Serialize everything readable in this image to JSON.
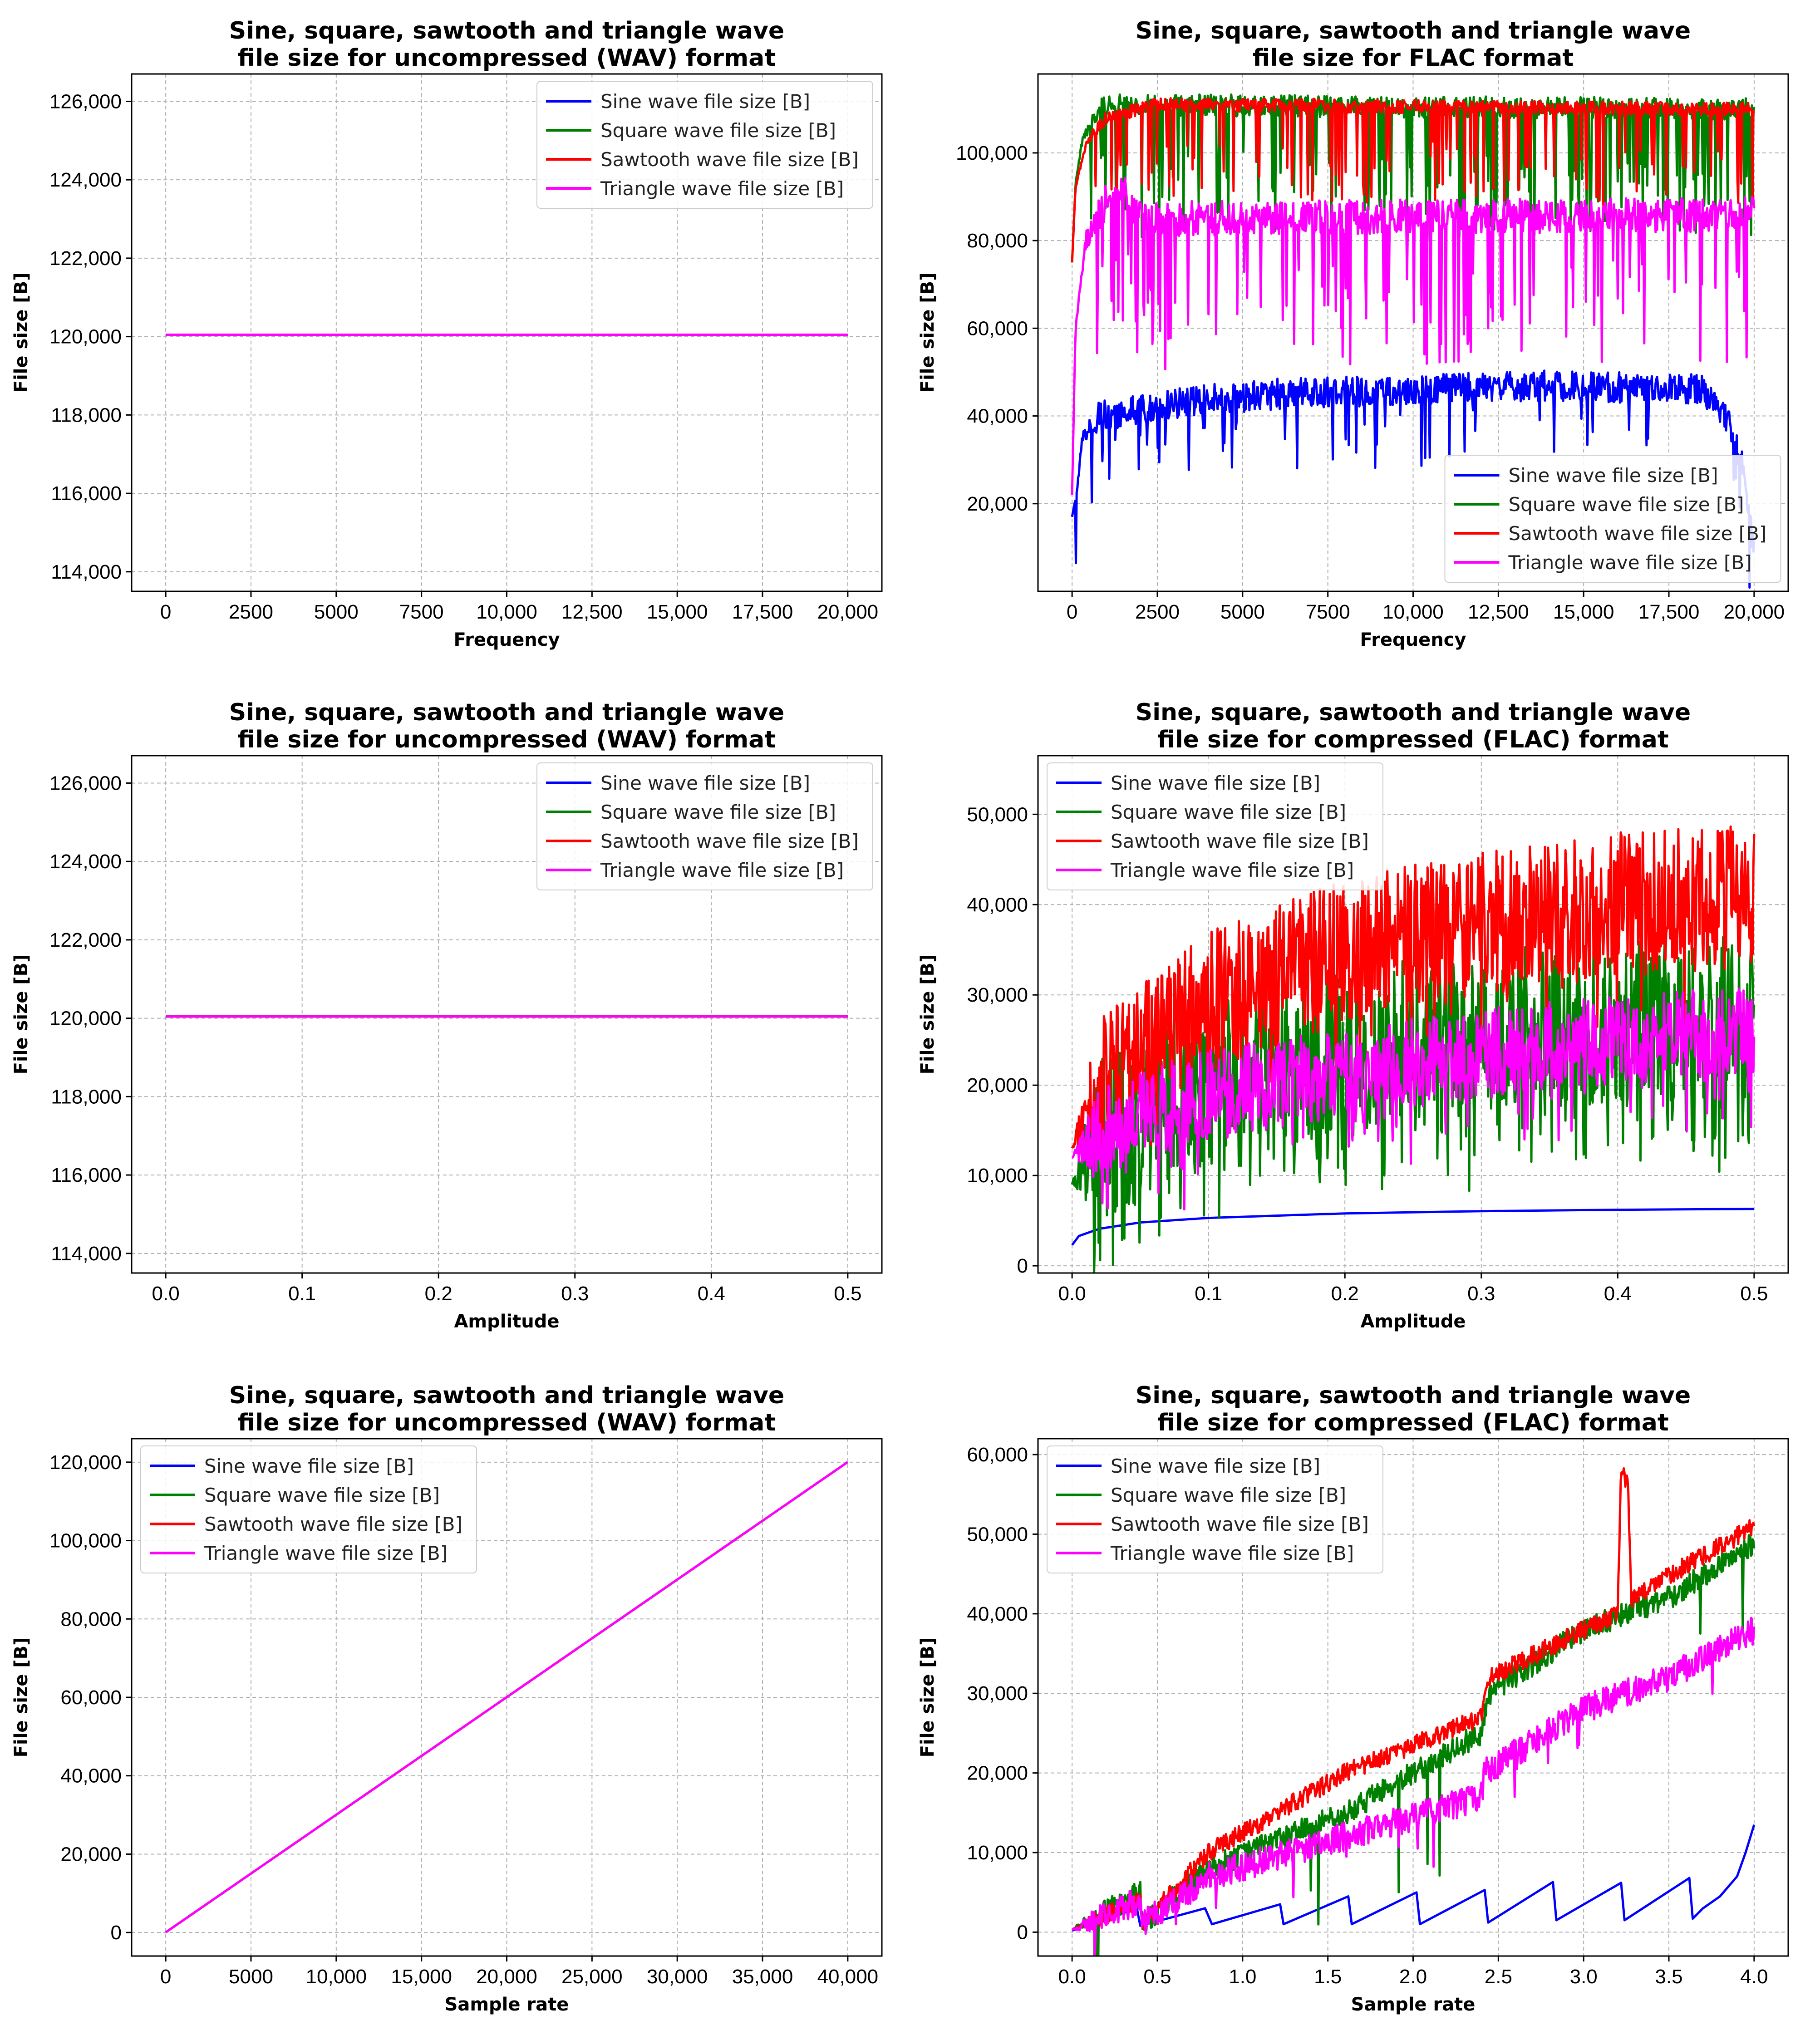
{
  "chart_data": [
    {
      "type": "line",
      "title": "Sine, square, sawtooth and triangle wave\nfile size for uncompressed (WAV) format",
      "xlabel": "Frequency",
      "ylabel": "File size [B]",
      "xlim": [
        -1000,
        21000
      ],
      "ylim": [
        113500,
        126700
      ],
      "xticks": [
        0,
        2500,
        5000,
        7500,
        10000,
        12500,
        15000,
        17500,
        20000
      ],
      "xtick_labels": [
        "0",
        "2500",
        "5000",
        "7500",
        "10,000",
        "12,500",
        "15,000",
        "17,500",
        "20,000"
      ],
      "yticks": [
        114000,
        116000,
        118000,
        120000,
        122000,
        124000,
        126000
      ],
      "ytick_labels": [
        "114,000",
        "116,000",
        "118,000",
        "120,000",
        "122,000",
        "124,000",
        "126,000"
      ],
      "grid": true,
      "legend_position": "top-right",
      "series": [
        {
          "name": "Sine wave file size [B]",
          "color": "#0000ff",
          "gen": "const",
          "x0": 0,
          "x1": 20000,
          "value": 120044
        },
        {
          "name": "Square wave file size [B]",
          "color": "#008000",
          "gen": "const",
          "x0": 0,
          "x1": 20000,
          "value": 120044
        },
        {
          "name": "Sawtooth wave file size [B]",
          "color": "#ff0000",
          "gen": "const",
          "x0": 0,
          "x1": 20000,
          "value": 120044
        },
        {
          "name": "Triangle wave file size [B]",
          "color": "#ff00ff",
          "gen": "const",
          "x0": 0,
          "x1": 20000,
          "value": 120044
        }
      ]
    },
    {
      "type": "line",
      "title": "Sine, square, sawtooth and triangle wave\nfile size for FLAC format",
      "xlabel": "Frequency",
      "ylabel": "File size [B]",
      "xlim": [
        -1000,
        21000
      ],
      "ylim": [
        0,
        118000
      ],
      "xticks": [
        0,
        2500,
        5000,
        7500,
        10000,
        12500,
        15000,
        17500,
        20000
      ],
      "xtick_labels": [
        "0",
        "2500",
        "5000",
        "7500",
        "10,000",
        "12,500",
        "15,000",
        "17,500",
        "20,000"
      ],
      "yticks": [
        20000,
        40000,
        60000,
        80000,
        100000
      ],
      "ytick_labels": [
        "20,000",
        "40,000",
        "60,000",
        "80,000",
        "100,000"
      ],
      "grid": true,
      "legend_position": "lower-center",
      "series": [
        {
          "name": "Sine wave file size [B]",
          "color": "#0000ff",
          "gen": "noisy",
          "points": [
            [
              0,
              17000
            ],
            [
              150,
              23000
            ],
            [
              300,
              35000
            ],
            [
              800,
              40000
            ],
            [
              3000,
              43000
            ],
            [
              6000,
              45000
            ],
            [
              10000,
              46000
            ],
            [
              14000,
              47000
            ],
            [
              18500,
              46000
            ],
            [
              19200,
              40000
            ],
            [
              19700,
              28000
            ],
            [
              20000,
              8000
            ]
          ],
          "amp": 3500,
          "dips": 0.05,
          "dipDepth": 16000
        },
        {
          "name": "Square wave file size [B]",
          "color": "#008000",
          "gen": "noisy",
          "points": [
            [
              0,
              75000
            ],
            [
              100,
              93000
            ],
            [
              300,
              103000
            ],
            [
              800,
              110000
            ],
            [
              1500,
              111000
            ],
            [
              20000,
              110000
            ]
          ],
          "amp": 2500,
          "dips": 0.14,
          "dipDepth": 30000
        },
        {
          "name": "Sawtooth wave file size [B]",
          "color": "#ff0000",
          "gen": "noisy",
          "points": [
            [
              0,
              75000
            ],
            [
              100,
              92000
            ],
            [
              400,
              102000
            ],
            [
              1000,
              108000
            ],
            [
              2500,
              111000
            ],
            [
              20000,
              110000
            ]
          ],
          "amp": 1500,
          "dips": 0.1,
          "dipDepth": 22000
        },
        {
          "name": "Triangle wave file size [B]",
          "color": "#ff00ff",
          "gen": "noisy",
          "points": [
            [
              0,
              22000
            ],
            [
              100,
              60000
            ],
            [
              400,
              80000
            ],
            [
              1200,
              92000
            ],
            [
              1600,
              90000
            ],
            [
              2000,
              85000
            ],
            [
              20000,
              86000
            ]
          ],
          "amp": 4000,
          "dips": 0.12,
          "dipDepth": 32000
        }
      ]
    },
    {
      "type": "line",
      "title": "Sine, square, sawtooth and triangle wave\nfile size for uncompressed (WAV) format",
      "xlabel": "Amplitude",
      "ylabel": "File size [B]",
      "xlim": [
        -0.025,
        0.525
      ],
      "ylim": [
        113500,
        126700
      ],
      "xticks": [
        0,
        0.1,
        0.2,
        0.3,
        0.4,
        0.5
      ],
      "xtick_labels": [
        "0.0",
        "0.1",
        "0.2",
        "0.3",
        "0.4",
        "0.5"
      ],
      "yticks": [
        114000,
        116000,
        118000,
        120000,
        122000,
        124000,
        126000
      ],
      "ytick_labels": [
        "114,000",
        "116,000",
        "118,000",
        "120,000",
        "122,000",
        "124,000",
        "126,000"
      ],
      "grid": true,
      "legend_position": "top-right",
      "series": [
        {
          "name": "Sine wave file size [B]",
          "color": "#0000ff",
          "gen": "const",
          "x0": 0,
          "x1": 0.5,
          "value": 120044
        },
        {
          "name": "Square wave file size [B]",
          "color": "#008000",
          "gen": "const",
          "x0": 0,
          "x1": 0.5,
          "value": 120044
        },
        {
          "name": "Sawtooth wave file size [B]",
          "color": "#ff0000",
          "gen": "const",
          "x0": 0,
          "x1": 0.5,
          "value": 120044
        },
        {
          "name": "Triangle wave file size [B]",
          "color": "#ff00ff",
          "gen": "const",
          "x0": 0,
          "x1": 0.5,
          "value": 120044
        }
      ]
    },
    {
      "type": "line",
      "title": "Sine, square, sawtooth and triangle wave\nfile size for compressed (FLAC) format",
      "xlabel": "Amplitude",
      "ylabel": "File size [B]",
      "xlim": [
        -0.025,
        0.525
      ],
      "ylim": [
        -800,
        56500
      ],
      "xticks": [
        0,
        0.1,
        0.2,
        0.3,
        0.4,
        0.5
      ],
      "xtick_labels": [
        "0.0",
        "0.1",
        "0.2",
        "0.3",
        "0.4",
        "0.5"
      ],
      "yticks": [
        0,
        10000,
        20000,
        30000,
        40000,
        50000
      ],
      "ytick_labels": [
        "0",
        "10,000",
        "20,000",
        "30,000",
        "40,000",
        "50,000"
      ],
      "grid": true,
      "legend_position": "top-left",
      "series": [
        {
          "name": "Sine wave file size [B]",
          "color": "#0000ff",
          "gen": "curve",
          "points": [
            [
              0,
              2300
            ],
            [
              0.005,
              3300
            ],
            [
              0.02,
              4100
            ],
            [
              0.05,
              4800
            ],
            [
              0.1,
              5300
            ],
            [
              0.2,
              5800
            ],
            [
              0.3,
              6050
            ],
            [
              0.4,
              6200
            ],
            [
              0.5,
              6300
            ]
          ]
        },
        {
          "name": "Square wave file size [B]",
          "color": "#008000",
          "gen": "noisy",
          "points": [
            [
              0,
              9000
            ],
            [
              0.02,
              14000
            ],
            [
              0.1,
              20000
            ],
            [
              0.2,
              24000
            ],
            [
              0.3,
              26000
            ],
            [
              0.4,
              27000
            ],
            [
              0.5,
              27500
            ]
          ],
          "amp": 9000,
          "dips": 0.25,
          "dipDepth": 9000
        },
        {
          "name": "Sawtooth wave file size [B]",
          "color": "#ff0000",
          "gen": "noisy",
          "points": [
            [
              0,
              13000
            ],
            [
              0.02,
              20000
            ],
            [
              0.1,
              29000
            ],
            [
              0.2,
              35000
            ],
            [
              0.3,
              38000
            ],
            [
              0.4,
              40000
            ],
            [
              0.5,
              41000
            ]
          ],
          "amp": 8000,
          "dips": 0.06,
          "dipDepth": 10000
        },
        {
          "name": "Triangle wave file size [B]",
          "color": "#ff00ff",
          "gen": "noisy",
          "points": [
            [
              0,
              12000
            ],
            [
              0.02,
              15000
            ],
            [
              0.1,
              19000
            ],
            [
              0.2,
              21500
            ],
            [
              0.3,
              23500
            ],
            [
              0.4,
              25000
            ],
            [
              0.5,
              26000
            ]
          ],
          "amp": 5000,
          "dips": 0.12,
          "dipDepth": 7000
        }
      ]
    },
    {
      "type": "line",
      "title": "Sine, square, sawtooth and triangle wave\nfile size for uncompressed (WAV) format",
      "xlabel": "Sample rate",
      "ylabel": "File size [B]",
      "xlim": [
        -2000,
        42000
      ],
      "ylim": [
        -6000,
        126000
      ],
      "xticks": [
        0,
        5000,
        10000,
        15000,
        20000,
        25000,
        30000,
        35000,
        40000
      ],
      "xtick_labels": [
        "0",
        "5000",
        "10,000",
        "15,000",
        "20,000",
        "25,000",
        "30,000",
        "35,000",
        "40,000"
      ],
      "yticks": [
        0,
        20000,
        40000,
        60000,
        80000,
        100000,
        120000
      ],
      "ytick_labels": [
        "0",
        "20,000",
        "40,000",
        "60,000",
        "80,000",
        "100,000",
        "120,000"
      ],
      "grid": true,
      "legend_position": "top-left",
      "series": [
        {
          "name": "Sine wave file size [B]",
          "color": "#0000ff",
          "gen": "curve",
          "points": [
            [
              0,
              44
            ],
            [
              40000,
              120044
            ]
          ]
        },
        {
          "name": "Square wave file size [B]",
          "color": "#008000",
          "gen": "curve",
          "points": [
            [
              0,
              44
            ],
            [
              40000,
              120044
            ]
          ]
        },
        {
          "name": "Sawtooth wave file size [B]",
          "color": "#ff0000",
          "gen": "curve",
          "points": [
            [
              0,
              44
            ],
            [
              40000,
              120044
            ]
          ]
        },
        {
          "name": "Triangle wave file size [B]",
          "color": "#ff00ff",
          "gen": "curve",
          "points": [
            [
              0,
              44
            ],
            [
              40000,
              120044
            ]
          ]
        }
      ]
    },
    {
      "type": "line",
      "title": "Sine, square, sawtooth and triangle wave\nfile size for compressed (FLAC) format",
      "xlabel": "Sample rate",
      "ylabel": "File size [B]",
      "xlim": [
        -0.2,
        4.2
      ],
      "ylim": [
        -3000,
        62000
      ],
      "xticks": [
        0,
        0.5,
        1.0,
        1.5,
        2.0,
        2.5,
        3.0,
        3.5,
        4.0
      ],
      "xtick_labels": [
        "0.0",
        "0.5",
        "1.0",
        "1.5",
        "2.0",
        "2.5",
        "3.0",
        "3.5",
        "4.0"
      ],
      "yticks": [
        0,
        10000,
        20000,
        30000,
        40000,
        50000,
        60000
      ],
      "ytick_labels": [
        "0",
        "10,000",
        "20,000",
        "30,000",
        "40,000",
        "50,000",
        "60,000"
      ],
      "grid": true,
      "legend_position": "top-left",
      "series": [
        {
          "name": "Sine wave file size [B]",
          "color": "#0000ff",
          "gen": "curve",
          "points": [
            [
              0,
              200
            ],
            [
              0.38,
              3000
            ],
            [
              0.4,
              800
            ],
            [
              0.78,
              3000
            ],
            [
              0.82,
              1000
            ],
            [
              1.22,
              3500
            ],
            [
              1.24,
              1000
            ],
            [
              1.62,
              4500
            ],
            [
              1.64,
              1000
            ],
            [
              2.02,
              5000
            ],
            [
              2.04,
              1000
            ],
            [
              2.42,
              5300
            ],
            [
              2.44,
              1200
            ],
            [
              2.82,
              6300
            ],
            [
              2.84,
              1500
            ],
            [
              3.22,
              6200
            ],
            [
              3.24,
              1500
            ],
            [
              3.62,
              6800
            ],
            [
              3.64,
              1700
            ],
            [
              3.7,
              3000
            ],
            [
              3.8,
              4500
            ],
            [
              3.9,
              7000
            ],
            [
              3.95,
              10000
            ],
            [
              4.0,
              13500
            ]
          ]
        },
        {
          "name": "Square wave file size [B]",
          "color": "#008000",
          "gen": "noisy",
          "points": [
            [
              0,
              300
            ],
            [
              0.4,
              5000
            ],
            [
              0.41,
              1000
            ],
            [
              0.8,
              8000
            ],
            [
              1.6,
              15000
            ],
            [
              2.4,
              25000
            ],
            [
              2.45,
              30000
            ],
            [
              3.0,
              38000
            ],
            [
              3.5,
              42000
            ],
            [
              4.0,
              49000
            ]
          ],
          "amp": 1500,
          "dips": 0.01,
          "dipDepth": 15000
        },
        {
          "name": "Sawtooth wave file size [B]",
          "color": "#ff0000",
          "gen": "noisy",
          "points": [
            [
              0,
              300
            ],
            [
              0.4,
              4000
            ],
            [
              0.41,
              1000
            ],
            [
              0.8,
              10000
            ],
            [
              1.6,
              20000
            ],
            [
              2.4,
              27000
            ],
            [
              2.45,
              32000
            ],
            [
              3.0,
              38000
            ],
            [
              3.2,
              40000
            ],
            [
              3.22,
              58000
            ],
            [
              3.26,
              56000
            ],
            [
              3.28,
              42000
            ],
            [
              4.0,
              51000
            ]
          ],
          "amp": 1200,
          "dips": 0.0,
          "dipDepth": 0
        },
        {
          "name": "Triangle wave file size [B]",
          "color": "#ff00ff",
          "gen": "noisy",
          "points": [
            [
              0,
              300
            ],
            [
              0.4,
              4000
            ],
            [
              0.41,
              1000
            ],
            [
              0.8,
              7000
            ],
            [
              1.6,
              12000
            ],
            [
              2.4,
              17000
            ],
            [
              2.42,
              20000
            ],
            [
              3.0,
              28000
            ],
            [
              3.5,
              32000
            ],
            [
              4.0,
              38000
            ]
          ],
          "amp": 1800,
          "dips": 0.02,
          "dipDepth": 6000
        }
      ]
    }
  ]
}
